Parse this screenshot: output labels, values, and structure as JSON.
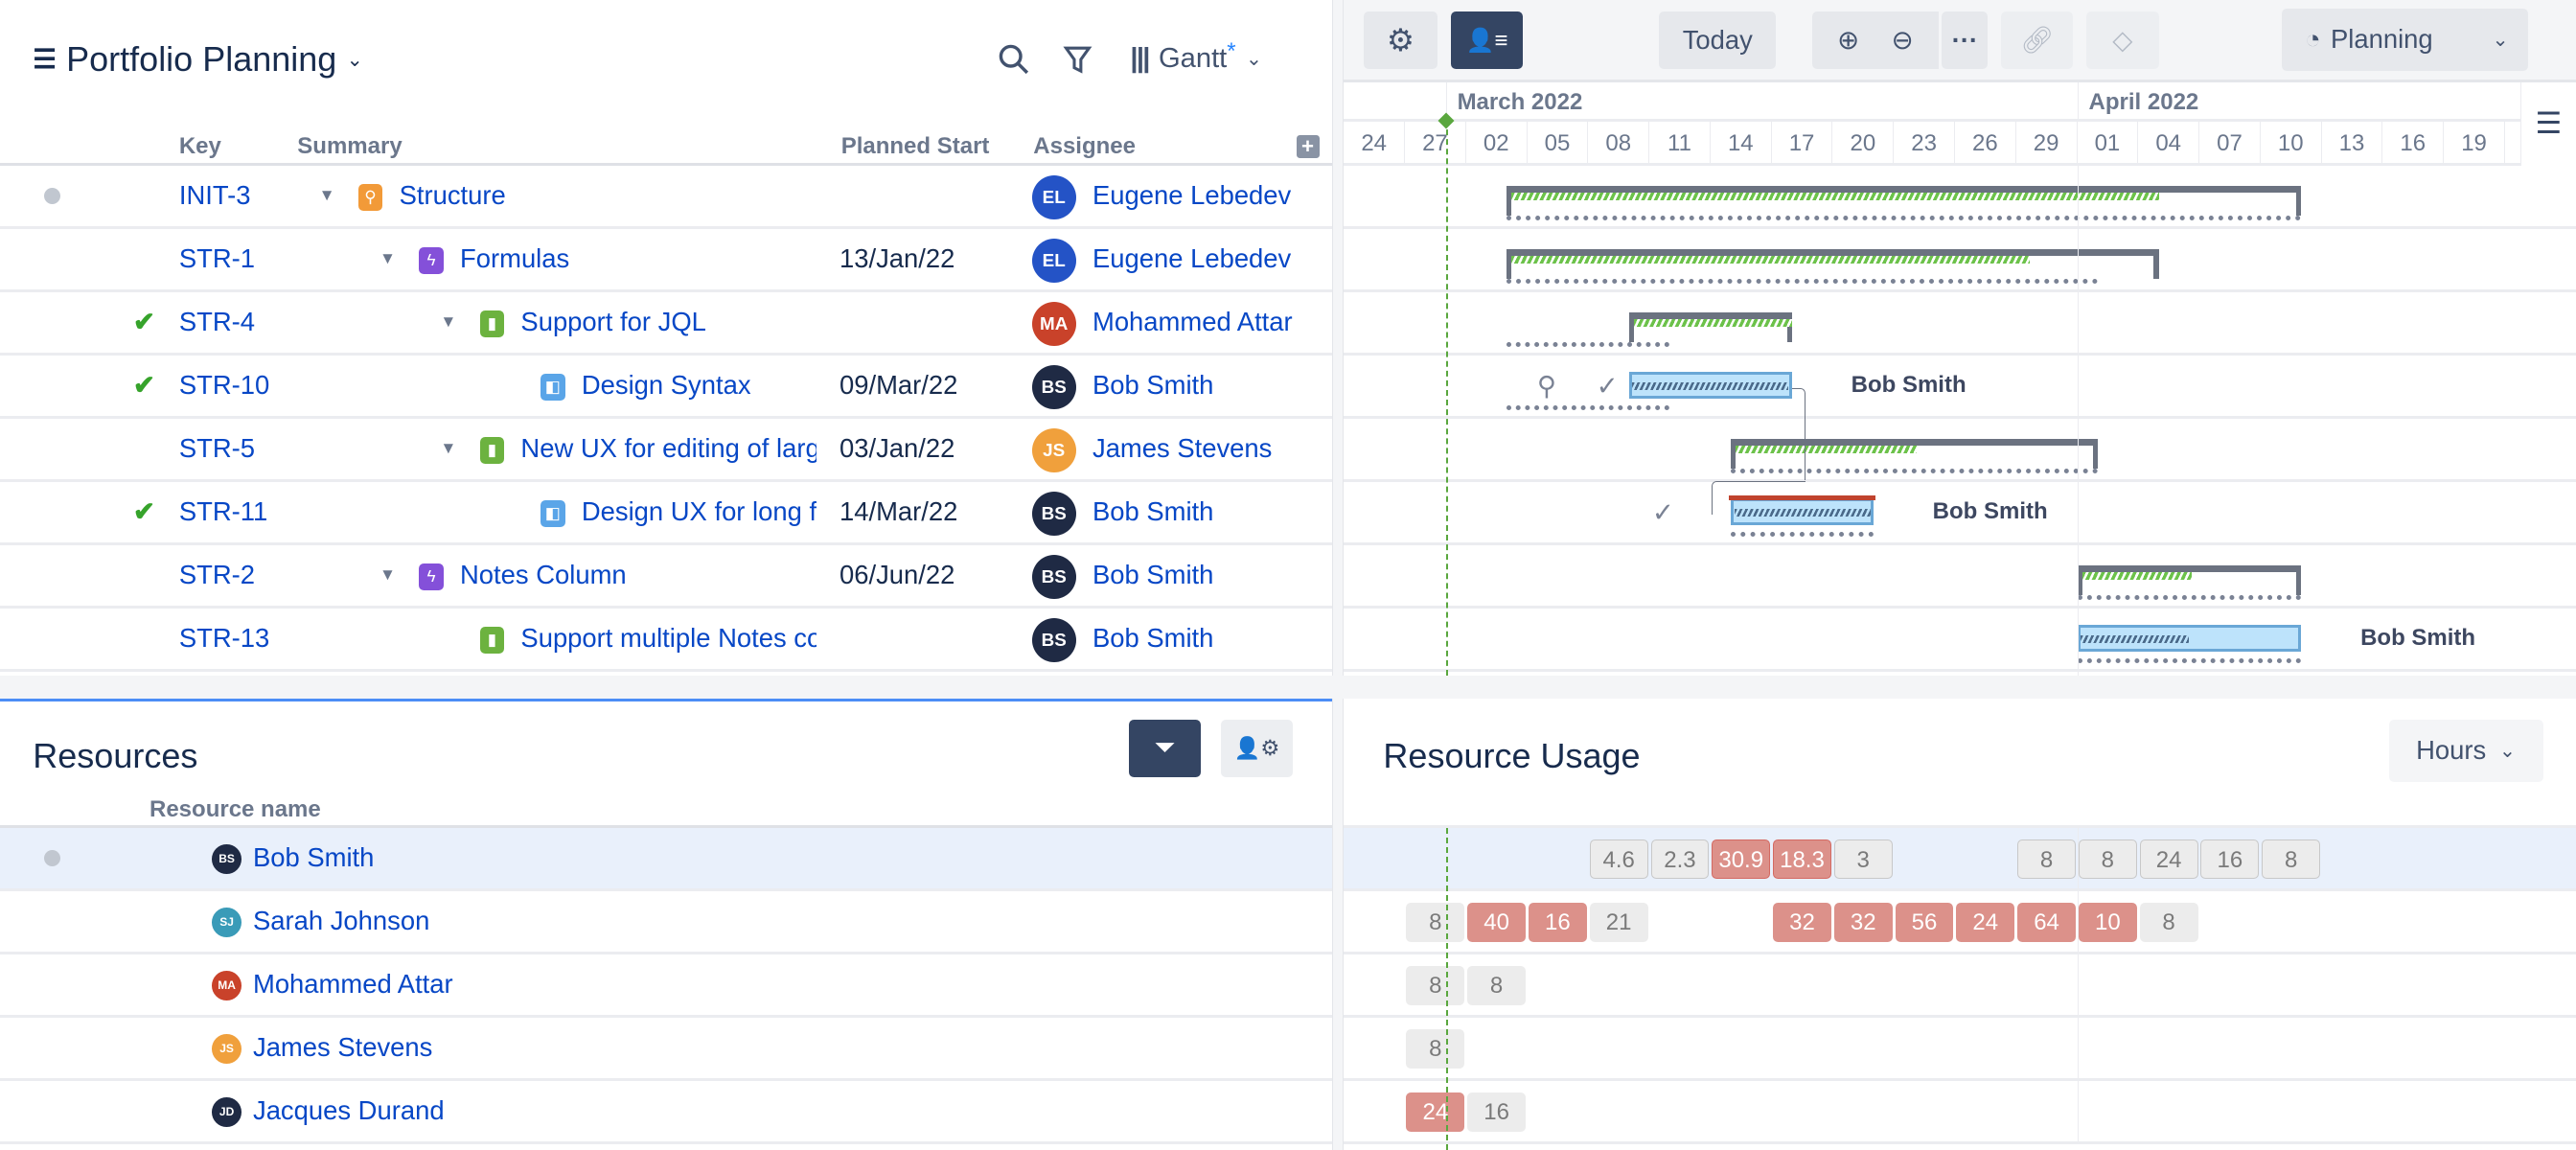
{
  "header": {
    "title": "Portfolio Planning",
    "view_label": "Gantt",
    "view_modified_marker": "*"
  },
  "columns": {
    "key": "Key",
    "summary": "Summary",
    "planned_start": "Planned Start",
    "assignee": "Assignee"
  },
  "rows": [
    {
      "status": "dot",
      "key": "INIT-3",
      "summary": "Structure",
      "type": "epic",
      "level": 0,
      "caret": true,
      "planned_start": "",
      "assignee": "Eugene Lebedev",
      "initials": "EL",
      "avatar_color": "#2453c6"
    },
    {
      "status": "",
      "key": "STR-1",
      "summary": "Formulas",
      "type": "feature",
      "level": 1,
      "caret": true,
      "planned_start": "13/Jan/22",
      "assignee": "Eugene Lebedev",
      "initials": "EL",
      "avatar_color": "#2453c6"
    },
    {
      "status": "done",
      "key": "STR-4",
      "summary": "Support for JQL",
      "type": "story",
      "level": 2,
      "caret": true,
      "planned_start": "",
      "assignee": "Mohammed Attar",
      "initials": "MA",
      "avatar_color": "#c9422a"
    },
    {
      "status": "done",
      "key": "STR-10",
      "summary": "Design Syntax",
      "type": "subtask",
      "level": 3,
      "caret": false,
      "planned_start": "09/Mar/22",
      "assignee": "Bob Smith",
      "initials": "BS",
      "avatar_color": "#1f2a44"
    },
    {
      "status": "",
      "key": "STR-5",
      "summary": "New UX for editing of large formulas",
      "type": "story",
      "level": 2,
      "caret": true,
      "planned_start": "03/Jan/22",
      "assignee": "James Stevens",
      "initials": "JS",
      "avatar_color": "#f0a03c"
    },
    {
      "status": "done",
      "key": "STR-11",
      "summary": "Design UX for long formulas",
      "type": "subtask",
      "level": 3,
      "caret": false,
      "planned_start": "14/Mar/22",
      "assignee": "Bob Smith",
      "initials": "BS",
      "avatar_color": "#1f2a44"
    },
    {
      "status": "",
      "key": "STR-2",
      "summary": "Notes Column",
      "type": "feature",
      "level": 1,
      "caret": true,
      "planned_start": "06/Jun/22",
      "assignee": "Bob Smith",
      "initials": "BS",
      "avatar_color": "#1f2a44"
    },
    {
      "status": "",
      "key": "STR-13",
      "summary": "Support multiple Notes columns",
      "type": "story",
      "level": 2,
      "caret": false,
      "planned_start": "",
      "assignee": "Bob Smith",
      "initials": "BS",
      "avatar_color": "#1f2a44"
    }
  ],
  "toolbar": {
    "today": "Today",
    "mode": "Planning"
  },
  "timeline": {
    "months": [
      {
        "label": "March 2022",
        "date": "2022-03-01"
      },
      {
        "label": "April 2022",
        "date": "2022-04-01"
      }
    ],
    "ticks": [
      "24",
      "27",
      "02",
      "05",
      "08",
      "11",
      "14",
      "17",
      "20",
      "23",
      "26",
      "29",
      "01",
      "04",
      "07",
      "10",
      "13",
      "16",
      "19"
    ],
    "start_date": "2022-02-24",
    "today": "2022-03-01"
  },
  "gantt_bars": [
    {
      "kind": "summary",
      "start": "2022-03-04",
      "end": "2022-04-12",
      "progress": 0.82,
      "baseline_start": "2022-03-04",
      "baseline_end": "2022-04-12"
    },
    {
      "kind": "summary",
      "start": "2022-03-04",
      "end": "2022-04-05",
      "progress": 0.8,
      "baseline_start": "2022-03-04",
      "baseline_end": "2022-04-02"
    },
    {
      "kind": "summary",
      "start": "2022-03-10",
      "end": "2022-03-18",
      "progress": 1.0,
      "baseline_start": "2022-03-04",
      "baseline_end": "2022-03-12"
    },
    {
      "kind": "task",
      "start": "2022-03-10",
      "end": "2022-03-18",
      "progress": 1.0,
      "baseline_start": "2022-03-04",
      "baseline_end": "2022-03-12",
      "label": "Bob Smith",
      "markers": [
        "pin",
        "check"
      ]
    },
    {
      "kind": "summary",
      "start": "2022-03-15",
      "end": "2022-04-02",
      "progress": 0.5,
      "baseline_start": "2022-03-15",
      "baseline_end": "2022-04-02"
    },
    {
      "kind": "task",
      "start": "2022-03-15",
      "end": "2022-03-22",
      "progress": 1.0,
      "baseline_start": "2022-03-15",
      "baseline_end": "2022-03-22",
      "label": "Bob Smith",
      "critical": true,
      "markers": [
        "check"
      ]
    },
    {
      "kind": "summary",
      "start": "2022-04-01",
      "end": "2022-04-12",
      "progress": 0.5,
      "baseline_start": "2022-04-01",
      "baseline_end": "2022-04-12"
    },
    {
      "kind": "task",
      "start": "2022-04-01",
      "end": "2022-04-12",
      "progress": 0.5,
      "baseline_start": "2022-04-01",
      "baseline_end": "2022-04-12",
      "label": "Bob Smith"
    }
  ],
  "resources": {
    "title": "Resources",
    "column": "Resource name",
    "items": [
      {
        "name": "Bob Smith",
        "initials": "BS",
        "color": "#1f2a44",
        "selected": true
      },
      {
        "name": "Sarah Johnson",
        "initials": "SJ",
        "color": "#3a9bb8"
      },
      {
        "name": "Mohammed Attar",
        "initials": "MA",
        "color": "#c9422a"
      },
      {
        "name": "James Stevens",
        "initials": "JS",
        "color": "#f0a03c"
      },
      {
        "name": "Jacques Durand",
        "initials": "JD",
        "color": "#1f2a44"
      }
    ]
  },
  "usage": {
    "title": "Resource Usage",
    "unit": "Hours",
    "rows": [
      [
        {
          "date": "2022-03-08",
          "v": "4.6"
        },
        {
          "date": "2022-03-11",
          "v": "2.3"
        },
        {
          "date": "2022-03-14",
          "v": "30.9",
          "over": true
        },
        {
          "date": "2022-03-17",
          "v": "18.3",
          "over": true
        },
        {
          "date": "2022-03-20",
          "v": "3"
        },
        {
          "date": "2022-03-29",
          "v": "8"
        },
        {
          "date": "2022-04-01",
          "v": "8"
        },
        {
          "date": "2022-04-04",
          "v": "24"
        },
        {
          "date": "2022-04-07",
          "v": "16"
        },
        {
          "date": "2022-04-10",
          "v": "8"
        }
      ],
      [
        {
          "date": "2022-02-27",
          "v": "8"
        },
        {
          "date": "2022-03-02",
          "v": "40",
          "over": true
        },
        {
          "date": "2022-03-05",
          "v": "16",
          "over": true
        },
        {
          "date": "2022-03-08",
          "v": "21"
        },
        {
          "date": "2022-03-17",
          "v": "32",
          "over": true
        },
        {
          "date": "2022-03-20",
          "v": "32",
          "over": true
        },
        {
          "date": "2022-03-23",
          "v": "56",
          "over": true
        },
        {
          "date": "2022-03-26",
          "v": "24",
          "over": true
        },
        {
          "date": "2022-03-29",
          "v": "64",
          "over": true
        },
        {
          "date": "2022-04-01",
          "v": "10",
          "over": true
        },
        {
          "date": "2022-04-04",
          "v": "8"
        }
      ],
      [
        {
          "date": "2022-02-27",
          "v": "8"
        },
        {
          "date": "2022-03-02",
          "v": "8"
        }
      ],
      [
        {
          "date": "2022-02-27",
          "v": "8"
        }
      ],
      [
        {
          "date": "2022-02-27",
          "v": "24",
          "over": true
        },
        {
          "date": "2022-03-02",
          "v": "16"
        }
      ]
    ]
  }
}
